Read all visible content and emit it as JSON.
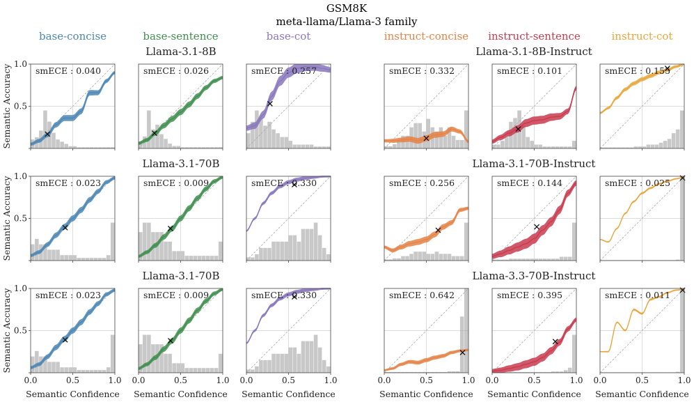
{
  "title": "GSM8K",
  "subtitle": "meta-llama/Llama-3 family",
  "colors": {
    "base-concise": "#4c87b5",
    "base-sentence": "#3f8f4f",
    "base-cot": "#8877bd",
    "instruct-concise": "#e58346",
    "instruct-sentence": "#c83b4d",
    "instruct-cot": "#e8a73d",
    "histogram": "#9a9a9a",
    "diagonal": "#aaaaaa"
  },
  "column_labels": [
    "base-concise",
    "base-sentence",
    "base-cot",
    "instruct-concise",
    "instruct-sentence",
    "instruct-cot"
  ],
  "row_titles_base": [
    "Llama-3.1-8B",
    "Llama-3.1-70B",
    "Llama-3.1-70B"
  ],
  "row_titles_instruct": [
    "Llama-3.1-8B-Instruct",
    "Llama-3.1-70B-Instruct",
    "Llama-3.3-70B-Instruct"
  ],
  "ylabel": "Semantic Accuracy",
  "xlabel": "Semantic Confidence",
  "xticks": [
    "0.0",
    "0.5",
    "1.0"
  ],
  "yticks": [
    "0.0",
    "0.5",
    "1.0"
  ],
  "chart_data": [
    {
      "type": "line",
      "row": 0,
      "col": 0,
      "method": "base-concise",
      "smece_label": "smECE : 0.040",
      "curve_x": [
        0,
        0.1,
        0.2,
        0.3,
        0.4,
        0.5,
        0.6,
        0.7,
        0.8,
        0.9,
        1.0
      ],
      "curve_y": [
        0.05,
        0.09,
        0.16,
        0.28,
        0.36,
        0.36,
        0.44,
        0.66,
        0.66,
        0.8,
        0.9
      ],
      "band": 0.03,
      "marker": [
        0.2,
        0.17
      ],
      "hist": [
        4,
        5,
        8,
        17,
        12,
        7,
        4,
        3,
        2,
        1,
        1,
        0.5,
        0.5,
        0.5,
        0.5,
        0.5,
        0.5,
        0.5,
        0.5,
        0.5
      ]
    },
    {
      "type": "line",
      "row": 0,
      "col": 1,
      "method": "base-sentence",
      "smece_label": "smECE : 0.026",
      "curve_x": [
        0,
        0.1,
        0.2,
        0.3,
        0.4,
        0.5,
        0.6,
        0.7,
        0.8,
        0.9,
        1.0
      ],
      "curve_y": [
        0.06,
        0.1,
        0.18,
        0.27,
        0.35,
        0.43,
        0.52,
        0.62,
        0.72,
        0.8,
        0.84
      ],
      "band": 0.03,
      "marker": [
        0.19,
        0.18
      ],
      "hist": [
        3,
        5,
        16,
        8,
        10,
        6,
        4,
        2,
        1,
        1,
        0.5,
        0.5,
        0.5,
        0.5,
        0.5,
        0.5,
        0.5,
        0.5,
        0.5,
        0.5
      ]
    },
    {
      "type": "line",
      "row": 0,
      "col": 2,
      "method": "base-cot",
      "smece_label": "smECE : 0.257",
      "curve_x": [
        0,
        0.1,
        0.2,
        0.3,
        0.4,
        0.5,
        0.6,
        0.7,
        0.8,
        0.9,
        1.0
      ],
      "curve_y": [
        0.24,
        0.27,
        0.4,
        0.62,
        0.8,
        0.9,
        0.95,
        0.97,
        0.97,
        0.95,
        0.93
      ],
      "band": 0.05,
      "marker": [
        0.28,
        0.53
      ],
      "hist": [
        4,
        7,
        10,
        8,
        6,
        7,
        5,
        4,
        3,
        3,
        2,
        1,
        1,
        1,
        1,
        1,
        0.5,
        0.5,
        0.5,
        0.5
      ]
    },
    {
      "type": "line",
      "row": 0,
      "col": 3,
      "method": "instruct-concise",
      "smece_label": "smECE : 0.332",
      "curve_x": [
        0,
        0.1,
        0.2,
        0.3,
        0.4,
        0.5,
        0.6,
        0.7,
        0.8,
        0.9,
        1.0
      ],
      "curve_y": [
        0.09,
        0.09,
        0.1,
        0.11,
        0.09,
        0.12,
        0.16,
        0.17,
        0.23,
        0.2,
        0.08
      ],
      "band": 0.03,
      "marker": [
        0.5,
        0.12
      ],
      "hist": [
        0.5,
        0.5,
        1,
        2,
        3,
        3,
        5,
        6,
        6,
        4,
        7,
        5,
        4,
        5,
        3,
        5,
        3,
        2,
        2,
        9
      ]
    },
    {
      "type": "line",
      "row": 0,
      "col": 4,
      "method": "instruct-sentence",
      "smece_label": "smECE : 0.101",
      "curve_x": [
        0,
        0.1,
        0.2,
        0.3,
        0.4,
        0.5,
        0.6,
        0.7,
        0.8,
        0.9,
        1.0
      ],
      "curve_y": [
        0.08,
        0.13,
        0.18,
        0.23,
        0.3,
        0.33,
        0.34,
        0.37,
        0.38,
        0.44,
        0.72
      ],
      "band": 0.04,
      "marker": [
        0.31,
        0.23
      ],
      "hist": [
        1,
        1,
        2,
        3,
        7,
        8,
        10,
        6,
        3,
        2,
        1,
        1,
        0.5,
        0.5,
        0.5,
        0.5,
        0.5,
        0.5,
        0.5,
        2
      ]
    },
    {
      "type": "line",
      "row": 0,
      "col": 5,
      "method": "instruct-cot",
      "smece_label": "smECE : 0.155",
      "curve_x": [
        0,
        0.1,
        0.2,
        0.3,
        0.4,
        0.5,
        0.6,
        0.7,
        0.8,
        0.9,
        1.0
      ],
      "curve_y": [
        0.42,
        0.48,
        0.6,
        0.7,
        0.77,
        0.82,
        0.86,
        0.9,
        0.93,
        0.97,
        1.0
      ],
      "band": 0.02,
      "marker": [
        0.8,
        0.95
      ],
      "hist": [
        0.5,
        0.5,
        0.5,
        0.5,
        0.5,
        0.5,
        0.5,
        0.5,
        1,
        1,
        1,
        2,
        2,
        2,
        3,
        4,
        5,
        8,
        10,
        20
      ]
    },
    {
      "type": "line",
      "row": 1,
      "col": 0,
      "method": "base-concise",
      "smece_label": "smECE : 0.023",
      "curve_x": [
        0,
        0.1,
        0.2,
        0.3,
        0.4,
        0.5,
        0.6,
        0.7,
        0.8,
        0.9,
        1.0
      ],
      "curve_y": [
        0.06,
        0.1,
        0.19,
        0.3,
        0.4,
        0.5,
        0.6,
        0.72,
        0.82,
        0.93,
        0.98
      ],
      "band": 0.03,
      "marker": [
        0.41,
        0.39
      ],
      "hist": [
        3,
        4,
        3,
        3,
        2,
        2,
        2,
        1,
        1,
        1,
        1,
        0.5,
        0.5,
        0.5,
        0.5,
        0.5,
        0.5,
        0.5,
        1,
        7
      ]
    },
    {
      "type": "line",
      "row": 1,
      "col": 1,
      "method": "base-sentence",
      "smece_label": "smECE : 0.009",
      "curve_x": [
        0,
        0.1,
        0.2,
        0.3,
        0.4,
        0.5,
        0.6,
        0.7,
        0.8,
        0.9,
        1.0
      ],
      "curve_y": [
        0.05,
        0.1,
        0.18,
        0.28,
        0.38,
        0.5,
        0.62,
        0.74,
        0.85,
        0.94,
        0.99
      ],
      "band": 0.03,
      "marker": [
        0.38,
        0.38
      ],
      "hist": [
        3,
        4,
        4,
        3,
        3,
        3,
        2,
        2,
        1,
        1,
        1,
        0.5,
        0.5,
        0.5,
        0.5,
        0.5,
        0.5,
        0.5,
        0.5,
        2
      ]
    },
    {
      "type": "line",
      "row": 1,
      "col": 2,
      "method": "base-cot",
      "smece_label": "smECE : 0.330",
      "curve_x": [
        0,
        0.1,
        0.2,
        0.3,
        0.4,
        0.5,
        0.6,
        0.7,
        0.8,
        0.9,
        1.0
      ],
      "curve_y": [
        0.35,
        0.5,
        0.68,
        0.8,
        0.88,
        0.93,
        0.96,
        0.98,
        0.99,
        1.0,
        1.0
      ],
      "band": 0.02,
      "marker": [
        0.57,
        0.9
      ],
      "hist": [
        0.5,
        0.5,
        1,
        2,
        2,
        2,
        3,
        3,
        3,
        3,
        4,
        4,
        3,
        5,
        5,
        5,
        6,
        4,
        2,
        1
      ]
    },
    {
      "type": "line",
      "row": 1,
      "col": 3,
      "method": "instruct-concise",
      "smece_label": "smECE : 0.256",
      "curve_x": [
        0,
        0.1,
        0.2,
        0.3,
        0.4,
        0.5,
        0.6,
        0.7,
        0.8,
        0.9,
        1.0
      ],
      "curve_y": [
        0.16,
        0.12,
        0.16,
        0.2,
        0.22,
        0.25,
        0.31,
        0.4,
        0.45,
        0.6,
        0.62
      ],
      "band": 0.03,
      "marker": [
        0.64,
        0.36
      ],
      "hist": [
        0.5,
        0.5,
        1,
        1,
        2,
        2,
        3,
        4,
        4,
        4,
        3,
        3,
        4,
        3,
        3,
        3,
        2,
        2,
        2,
        17
      ]
    },
    {
      "type": "line",
      "row": 1,
      "col": 4,
      "method": "instruct-sentence",
      "smece_label": "smECE : 0.144",
      "curve_x": [
        0,
        0.1,
        0.2,
        0.3,
        0.4,
        0.5,
        0.6,
        0.7,
        0.8,
        0.9,
        1.0
      ],
      "curve_y": [
        0.05,
        0.08,
        0.12,
        0.16,
        0.2,
        0.26,
        0.36,
        0.46,
        0.6,
        0.8,
        0.92
      ],
      "band": 0.05,
      "marker": [
        0.53,
        0.4
      ],
      "hist": [
        0.5,
        0.5,
        0.5,
        0.5,
        1,
        1,
        1,
        1,
        1,
        1,
        1,
        1,
        1,
        1,
        1,
        1,
        2,
        2,
        2,
        20
      ]
    },
    {
      "type": "line",
      "row": 1,
      "col": 5,
      "method": "instruct-cot",
      "smece_label": "smECE : 0.025",
      "curve_x": [
        0,
        0.1,
        0.2,
        0.3,
        0.4,
        0.5,
        0.6,
        0.7,
        0.8,
        0.9,
        1.0
      ],
      "curve_y": [
        0.25,
        0.22,
        0.38,
        0.56,
        0.7,
        0.8,
        0.86,
        0.91,
        0.94,
        0.97,
        0.99
      ],
      "band": 0.01,
      "marker": [
        0.98,
        0.98
      ],
      "hist": [
        0.5,
        0.5,
        0.5,
        0.5,
        0.5,
        0.5,
        0.5,
        0.5,
        0.5,
        0.5,
        0.5,
        0.5,
        0.5,
        0.5,
        0.5,
        0.5,
        0.5,
        0.5,
        1,
        88
      ]
    },
    {
      "type": "line",
      "row": 2,
      "col": 0,
      "method": "base-concise",
      "smece_label": "smECE : 0.023",
      "curve_x": [
        0,
        0.1,
        0.2,
        0.3,
        0.4,
        0.5,
        0.6,
        0.7,
        0.8,
        0.9,
        1.0
      ],
      "curve_y": [
        0.06,
        0.1,
        0.19,
        0.3,
        0.4,
        0.5,
        0.6,
        0.72,
        0.82,
        0.93,
        0.98
      ],
      "band": 0.03,
      "marker": [
        0.41,
        0.39
      ],
      "hist": [
        3,
        4,
        3,
        3,
        2,
        2,
        2,
        1,
        1,
        1,
        1,
        0.5,
        0.5,
        0.5,
        0.5,
        0.5,
        0.5,
        0.5,
        1,
        7
      ]
    },
    {
      "type": "line",
      "row": 2,
      "col": 1,
      "method": "base-sentence",
      "smece_label": "smECE : 0.009",
      "curve_x": [
        0,
        0.1,
        0.2,
        0.3,
        0.4,
        0.5,
        0.6,
        0.7,
        0.8,
        0.9,
        1.0
      ],
      "curve_y": [
        0.05,
        0.1,
        0.18,
        0.28,
        0.38,
        0.5,
        0.62,
        0.74,
        0.85,
        0.94,
        0.99
      ],
      "band": 0.03,
      "marker": [
        0.38,
        0.38
      ],
      "hist": [
        3,
        4,
        4,
        3,
        3,
        3,
        2,
        2,
        1,
        1,
        1,
        0.5,
        0.5,
        0.5,
        0.5,
        0.5,
        0.5,
        0.5,
        0.5,
        2
      ]
    },
    {
      "type": "line",
      "row": 2,
      "col": 2,
      "method": "base-cot",
      "smece_label": "smECE : 0.330",
      "curve_x": [
        0,
        0.1,
        0.2,
        0.3,
        0.4,
        0.5,
        0.6,
        0.7,
        0.8,
        0.9,
        1.0
      ],
      "curve_y": [
        0.35,
        0.5,
        0.68,
        0.8,
        0.88,
        0.93,
        0.96,
        0.98,
        0.99,
        1.0,
        1.0
      ],
      "band": 0.02,
      "marker": [
        0.57,
        0.9
      ],
      "hist": [
        0.5,
        0.5,
        1,
        2,
        2,
        2,
        3,
        3,
        3,
        3,
        4,
        4,
        3,
        5,
        5,
        5,
        6,
        4,
        2,
        1
      ]
    },
    {
      "type": "line",
      "row": 2,
      "col": 3,
      "method": "instruct-concise",
      "smece_label": "smECE : 0.642",
      "curve_x": [
        0,
        0.1,
        0.2,
        0.3,
        0.4,
        0.5,
        0.6,
        0.7,
        0.8,
        0.9,
        1.0
      ],
      "curve_y": [
        0.03,
        0.05,
        0.1,
        0.13,
        0.12,
        0.15,
        0.18,
        0.2,
        0.24,
        0.26,
        0.27
      ],
      "band": 0.02,
      "marker": [
        0.93,
        0.24
      ],
      "hist": [
        0.5,
        0.5,
        0.5,
        0.5,
        0.5,
        0.5,
        0.5,
        0.5,
        0.5,
        0.5,
        0.5,
        0.5,
        0.5,
        0.5,
        0.5,
        1,
        1,
        1,
        40,
        60
      ]
    },
    {
      "type": "line",
      "row": 2,
      "col": 4,
      "method": "instruct-sentence",
      "smece_label": "smECE : 0.395",
      "curve_x": [
        0,
        0.1,
        0.2,
        0.3,
        0.4,
        0.5,
        0.6,
        0.7,
        0.8,
        0.9,
        1.0
      ],
      "curve_y": [
        0.02,
        0.03,
        0.05,
        0.07,
        0.1,
        0.13,
        0.18,
        0.26,
        0.36,
        0.52,
        0.63
      ],
      "band": 0.04,
      "marker": [
        0.75,
        0.37
      ],
      "hist": [
        0.5,
        0.5,
        0.5,
        0.5,
        0.5,
        0.5,
        0.5,
        0.5,
        0.5,
        0.5,
        0.5,
        0.5,
        0.5,
        0.5,
        1,
        1,
        1,
        2,
        4,
        30
      ]
    },
    {
      "type": "line",
      "row": 2,
      "col": 5,
      "method": "instruct-cot",
      "smece_label": "smECE : 0.011",
      "curve_x": [
        0,
        0.1,
        0.2,
        0.3,
        0.4,
        0.5,
        0.6,
        0.7,
        0.8,
        0.9,
        1.0
      ],
      "curve_y": [
        0.25,
        0.25,
        0.6,
        0.5,
        0.75,
        0.7,
        0.87,
        0.9,
        0.95,
        0.98,
        0.99
      ],
      "band": 0.01,
      "marker": [
        0.98,
        0.98
      ],
      "hist": [
        0.5,
        0.5,
        0.5,
        0.5,
        0.5,
        0.5,
        0.5,
        0.5,
        0.5,
        0.5,
        0.5,
        0.5,
        0.5,
        0.5,
        0.5,
        0.5,
        0.5,
        0.5,
        1,
        95
      ]
    }
  ]
}
